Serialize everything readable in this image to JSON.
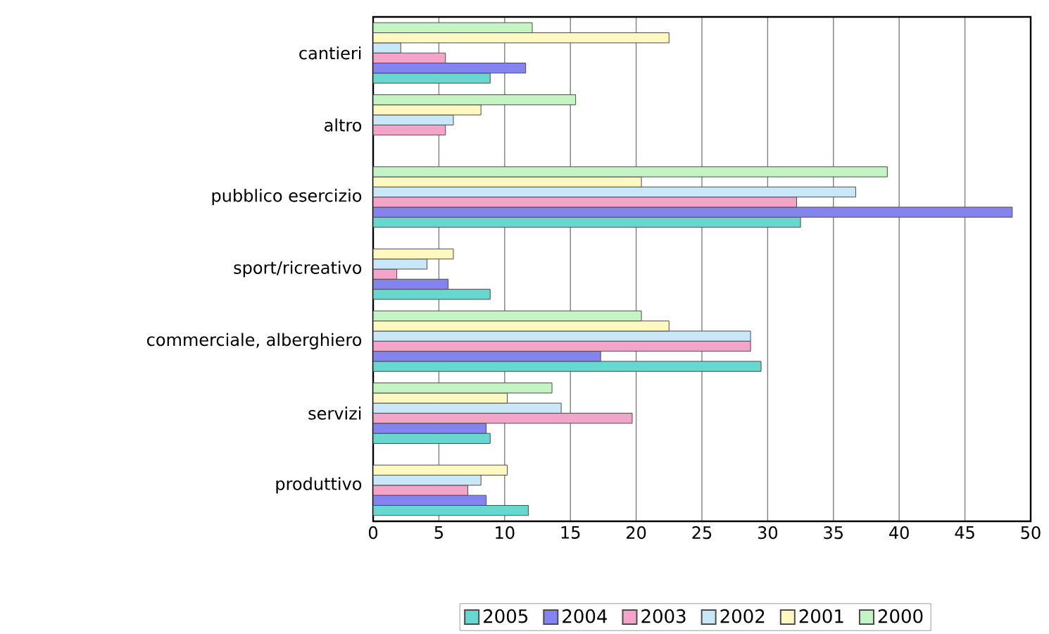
{
  "chart_data": {
    "type": "bar",
    "orientation": "horizontal",
    "categories": [
      "cantieri",
      "altro",
      "pubblico esercizio",
      "sport/ricreativo",
      "commerciale, alberghiero",
      "servizi",
      "produttivo"
    ],
    "series": [
      {
        "name": "2005",
        "color": "#66d8d0",
        "values": [
          8.9,
          null,
          32.5,
          8.9,
          29.5,
          8.9,
          11.8
        ]
      },
      {
        "name": "2004",
        "color": "#8484f0",
        "values": [
          11.6,
          null,
          48.6,
          5.7,
          17.3,
          8.6,
          8.6
        ]
      },
      {
        "name": "2003",
        "color": "#f4a4c8",
        "values": [
          5.5,
          5.5,
          32.2,
          1.8,
          28.7,
          19.7,
          7.2
        ]
      },
      {
        "name": "2002",
        "color": "#c8e8f8",
        "values": [
          2.1,
          6.1,
          36.7,
          4.1,
          28.7,
          14.3,
          8.2
        ]
      },
      {
        "name": "2001",
        "color": "#fff8c0",
        "values": [
          22.5,
          8.2,
          20.4,
          6.1,
          22.5,
          10.2,
          10.2
        ]
      },
      {
        "name": "2000",
        "color": "#c4f4c4",
        "values": [
          12.1,
          15.4,
          39.1,
          null,
          20.4,
          13.6,
          null
        ]
      }
    ],
    "xlim": [
      0,
      50
    ],
    "xticks": [
      0,
      5,
      10,
      15,
      20,
      25,
      30,
      35,
      40,
      45,
      50
    ],
    "grid": "x",
    "legend": "bottom"
  }
}
